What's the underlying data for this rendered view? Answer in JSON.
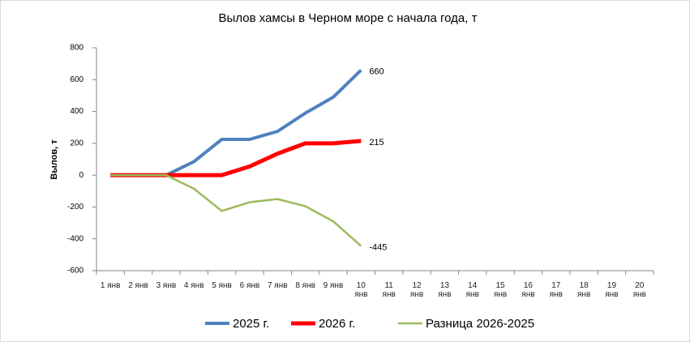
{
  "chart_data": {
    "type": "line",
    "title": "Вылов хамсы в Черном море с начала года, т",
    "y_label": "Вылов, т",
    "categories": [
      "1 янв",
      "2 янв",
      "3 янв",
      "4 янв",
      "5 янв",
      "6 янв",
      "7 янв",
      "8 янв",
      "9 янв",
      "10 янв",
      "11 янв",
      "12 янв",
      "13 янв",
      "14 янв",
      "15 янв",
      "16 янв",
      "17 янв",
      "18 янв",
      "19 янв",
      "20 янв"
    ],
    "series": [
      {
        "name": "2025 г.",
        "color": "#4f81bd",
        "width": 4,
        "label_color": "#000000",
        "values": [
          0,
          0,
          0,
          85,
          225,
          225,
          275,
          390,
          490,
          660,
          null,
          null,
          null,
          null,
          null,
          null,
          null,
          null,
          null,
          null
        ]
      },
      {
        "name": "2026 г.",
        "color": "#ff0000",
        "width": 5,
        "label_color": "#000000",
        "values": [
          0,
          0,
          0,
          0,
          0,
          55,
          135,
          200,
          200,
          215,
          null,
          null,
          null,
          null,
          null,
          null,
          null,
          null,
          null,
          null
        ]
      },
      {
        "name": "Разница 2026-2025",
        "color": "#9bbb59",
        "width": 2.5,
        "label_color": "#c00000",
        "values": [
          0,
          0,
          0,
          -85,
          -225,
          -170,
          -150,
          -195,
          -290,
          -445,
          null,
          null,
          null,
          null,
          null,
          null,
          null,
          null,
          null,
          null
        ]
      }
    ],
    "ylim": [
      -600,
      800
    ],
    "yticks": [
      -600,
      -400,
      -200,
      0,
      200,
      400,
      600,
      800
    ],
    "grid": false,
    "legend": "bottom"
  }
}
